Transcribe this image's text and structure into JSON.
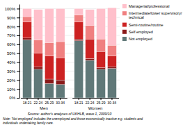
{
  "chart_data": {
    "type": "bar",
    "stacked": true,
    "categories": [
      "18-21",
      "22-24",
      "25-29",
      "30-34",
      "18-21",
      "22-24",
      "25-29",
      "30-34"
    ],
    "groups": [
      "Men",
      "Women"
    ],
    "series": [
      {
        "name": "Not employed",
        "color": "#607878",
        "values": [
          65,
          32,
          16,
          15,
          64,
          42,
          32,
          33
        ]
      },
      {
        "name": "Self employed",
        "color": "#8b1a1a",
        "values": [
          2,
          3,
          5,
          5,
          2,
          2,
          2,
          2
        ]
      },
      {
        "name": "Semi-routine/routine",
        "color": "#cc2222",
        "values": [
          18,
          15,
          26,
          25,
          19,
          22,
          18,
          12
        ]
      },
      {
        "name": "Intermediate/lower supervisory/\ntechnical",
        "color": "#f08080",
        "values": [
          6,
          15,
          15,
          18,
          8,
          15,
          14,
          12
        ]
      },
      {
        "name": "Managerial/professional",
        "color": "#ffc0cb",
        "values": [
          9,
          34,
          38,
          37,
          7,
          18,
          34,
          42
        ]
      }
    ],
    "ylim": [
      0,
      105
    ],
    "yticks": [
      {
        "value": 0,
        "label": "0%"
      },
      {
        "value": 10,
        "label": "10%"
      },
      {
        "value": 20,
        "label": "20%"
      },
      {
        "value": 30,
        "label": "30%"
      },
      {
        "value": 40,
        "label": "40%"
      },
      {
        "value": 50,
        "label": "50%"
      },
      {
        "value": 60,
        "label": "60%"
      },
      {
        "value": 70,
        "label": "70%"
      },
      {
        "value": 80,
        "label": "80%"
      },
      {
        "value": 90,
        "label": "90%"
      },
      {
        "value": 100,
        "label": "100%"
      }
    ],
    "grid": true,
    "legend": "right",
    "annotations": [
      "Source: author's analyses of UKHLB, wave 1, 2009/10",
      "Note: 'Not employed' includes the unemployed and those economically inactive e.g. students and\nindividuals undertaking family care."
    ]
  }
}
